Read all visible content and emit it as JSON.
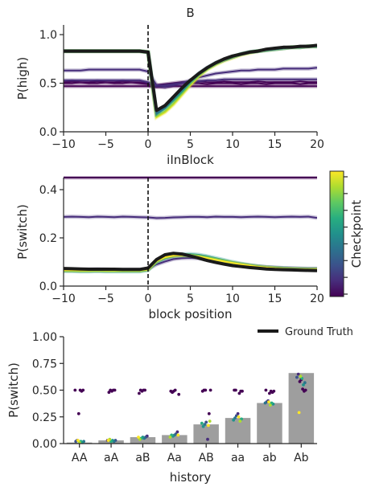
{
  "colors": {
    "viridis": [
      "#440154",
      "#472d7b",
      "#3b528b",
      "#2c728e",
      "#21918c",
      "#28ae80",
      "#5ec962",
      "#addc30",
      "#fde725"
    ],
    "ground_truth": "#1a1a1a",
    "bar_fill": "#9e9e9e",
    "axis": "#262626"
  },
  "chart_data": [
    {
      "type": "line",
      "title": "B",
      "xlabel": "iInBlock",
      "ylabel": "P(high)",
      "xlim": [
        -10,
        20
      ],
      "ylim": [
        0,
        1.1
      ],
      "xticks": [
        -10,
        -5,
        0,
        5,
        10,
        15,
        20
      ],
      "xtick_labels": [
        "−10",
        "−5",
        "0",
        "5",
        "10",
        "15",
        "20"
      ],
      "yticks": [
        0.0,
        0.5,
        1.0
      ],
      "ytick_labels": [
        "0.0",
        "0.5",
        "1.0"
      ],
      "vline_x": 0,
      "grid": false,
      "x": [
        -10,
        -9,
        -8,
        -7,
        -6,
        -5,
        -4,
        -3,
        -2,
        -1,
        0,
        1,
        2,
        3,
        4,
        5,
        6,
        7,
        8,
        9,
        10,
        11,
        12,
        13,
        14,
        15,
        16,
        17,
        18,
        19,
        20
      ],
      "series": [
        {
          "color_index": 0,
          "values": [
            0.47,
            0.47,
            0.47,
            0.47,
            0.47,
            0.47,
            0.47,
            0.47,
            0.47,
            0.47,
            0.47,
            0.46,
            0.46,
            0.47,
            0.47,
            0.47,
            0.47,
            0.47,
            0.47,
            0.47,
            0.47,
            0.47,
            0.47,
            0.47,
            0.47,
            0.47,
            0.47,
            0.47,
            0.47,
            0.47,
            0.47
          ]
        },
        {
          "color_index": 0,
          "values": [
            0.5,
            0.5,
            0.51,
            0.5,
            0.5,
            0.51,
            0.5,
            0.5,
            0.51,
            0.5,
            0.49,
            0.47,
            0.48,
            0.49,
            0.5,
            0.5,
            0.5,
            0.49,
            0.5,
            0.5,
            0.5,
            0.49,
            0.5,
            0.5,
            0.49,
            0.5,
            0.5,
            0.5,
            0.49,
            0.5,
            0.5
          ]
        },
        {
          "color_index": 0,
          "values": [
            0.51,
            0.52,
            0.51,
            0.51,
            0.52,
            0.51,
            0.51,
            0.52,
            0.51,
            0.51,
            0.5,
            0.48,
            0.49,
            0.5,
            0.51,
            0.51,
            0.52,
            0.51,
            0.51,
            0.52,
            0.51,
            0.51,
            0.51,
            0.52,
            0.51,
            0.51,
            0.51,
            0.51,
            0.52,
            0.51,
            0.51
          ]
        },
        {
          "color_index": 1,
          "values": [
            0.53,
            0.53,
            0.53,
            0.53,
            0.53,
            0.53,
            0.53,
            0.53,
            0.53,
            0.53,
            0.51,
            0.47,
            0.48,
            0.49,
            0.5,
            0.51,
            0.52,
            0.53,
            0.53,
            0.54,
            0.54,
            0.54,
            0.54,
            0.54,
            0.54,
            0.54,
            0.54,
            0.54,
            0.54,
            0.54,
            0.54
          ]
        },
        {
          "color_index": 1,
          "values": [
            0.63,
            0.63,
            0.63,
            0.64,
            0.64,
            0.64,
            0.64,
            0.64,
            0.64,
            0.64,
            0.62,
            0.48,
            0.46,
            0.48,
            0.5,
            0.53,
            0.56,
            0.58,
            0.6,
            0.61,
            0.62,
            0.63,
            0.63,
            0.64,
            0.64,
            0.64,
            0.65,
            0.65,
            0.65,
            0.65,
            0.66
          ]
        },
        {
          "color_index": 8,
          "values": [
            0.83,
            0.83,
            0.83,
            0.83,
            0.83,
            0.83,
            0.83,
            0.83,
            0.83,
            0.83,
            0.82,
            0.15,
            0.2,
            0.28,
            0.38,
            0.48,
            0.57,
            0.64,
            0.69,
            0.73,
            0.76,
            0.79,
            0.81,
            0.83,
            0.84,
            0.85,
            0.86,
            0.87,
            0.87,
            0.88,
            0.88
          ]
        },
        {
          "color_index": 7,
          "values": [
            0.83,
            0.83,
            0.83,
            0.83,
            0.83,
            0.83,
            0.83,
            0.83,
            0.83,
            0.83,
            0.82,
            0.16,
            0.21,
            0.29,
            0.39,
            0.49,
            0.58,
            0.65,
            0.7,
            0.74,
            0.77,
            0.8,
            0.82,
            0.83,
            0.84,
            0.85,
            0.86,
            0.87,
            0.87,
            0.88,
            0.88
          ]
        },
        {
          "color_index": 5,
          "values": [
            0.83,
            0.83,
            0.83,
            0.83,
            0.83,
            0.83,
            0.83,
            0.83,
            0.83,
            0.83,
            0.82,
            0.18,
            0.24,
            0.32,
            0.41,
            0.51,
            0.59,
            0.65,
            0.7,
            0.74,
            0.77,
            0.8,
            0.82,
            0.83,
            0.84,
            0.85,
            0.86,
            0.87,
            0.87,
            0.88,
            0.88
          ]
        },
        {
          "color_index": 3,
          "values": [
            0.83,
            0.83,
            0.83,
            0.83,
            0.83,
            0.83,
            0.83,
            0.83,
            0.83,
            0.83,
            0.82,
            0.19,
            0.25,
            0.34,
            0.43,
            0.52,
            0.6,
            0.66,
            0.71,
            0.74,
            0.77,
            0.8,
            0.82,
            0.83,
            0.84,
            0.85,
            0.86,
            0.87,
            0.87,
            0.88,
            0.88
          ]
        }
      ],
      "ground_truth": [
        0.83,
        0.83,
        0.83,
        0.83,
        0.83,
        0.83,
        0.83,
        0.83,
        0.83,
        0.83,
        0.82,
        0.22,
        0.27,
        0.36,
        0.45,
        0.53,
        0.6,
        0.66,
        0.71,
        0.75,
        0.78,
        0.8,
        0.82,
        0.83,
        0.85,
        0.86,
        0.87,
        0.87,
        0.88,
        0.88,
        0.89
      ]
    },
    {
      "type": "line",
      "xlabel": "block position",
      "ylabel": "P(switch)",
      "xlim": [
        -10,
        20
      ],
      "ylim": [
        0,
        0.45
      ],
      "xticks": [
        -10,
        -5,
        0,
        5,
        10,
        15,
        20
      ],
      "xtick_labels": [
        "−10",
        "−5",
        "0",
        "5",
        "10",
        "15",
        "20"
      ],
      "yticks": [
        0.0,
        0.2,
        0.4
      ],
      "ytick_labels": [
        "0.0",
        "0.2",
        "0.4"
      ],
      "vline_x": 0,
      "grid": false,
      "x": [
        -10,
        -9,
        -8,
        -7,
        -6,
        -5,
        -4,
        -3,
        -2,
        -1,
        0,
        1,
        2,
        3,
        4,
        5,
        6,
        7,
        8,
        9,
        10,
        11,
        12,
        13,
        14,
        15,
        16,
        17,
        18,
        19,
        20
      ],
      "series": [
        {
          "color_index": 0,
          "values": [
            0.45,
            0.45,
            0.45,
            0.45,
            0.45,
            0.45,
            0.45,
            0.45,
            0.45,
            0.45,
            0.45,
            0.45,
            0.45,
            0.45,
            0.45,
            0.45,
            0.45,
            0.45,
            0.45,
            0.45,
            0.45,
            0.45,
            0.45,
            0.45,
            0.45,
            0.45,
            0.45,
            0.45,
            0.45,
            0.45,
            0.45
          ]
        },
        {
          "color_index": 1,
          "values": [
            0.287,
            0.288,
            0.287,
            0.286,
            0.288,
            0.287,
            0.286,
            0.288,
            0.287,
            0.286,
            0.285,
            0.282,
            0.283,
            0.285,
            0.286,
            0.287,
            0.287,
            0.286,
            0.288,
            0.287,
            0.287,
            0.286,
            0.287,
            0.288,
            0.287,
            0.286,
            0.287,
            0.288,
            0.287,
            0.288,
            0.283
          ]
        },
        {
          "color_index": 1,
          "values": [
            0.07,
            0.07,
            0.069,
            0.069,
            0.07,
            0.069,
            0.068,
            0.068,
            0.068,
            0.068,
            0.072,
            0.09,
            0.102,
            0.112,
            0.116,
            0.117,
            0.115,
            0.111,
            0.106,
            0.1,
            0.095,
            0.09,
            0.086,
            0.082,
            0.079,
            0.077,
            0.075,
            0.074,
            0.073,
            0.072,
            0.072
          ]
        },
        {
          "color_index": 3,
          "values": [
            0.066,
            0.066,
            0.065,
            0.065,
            0.066,
            0.065,
            0.065,
            0.065,
            0.065,
            0.065,
            0.07,
            0.1,
            0.115,
            0.123,
            0.126,
            0.125,
            0.121,
            0.115,
            0.108,
            0.101,
            0.095,
            0.09,
            0.085,
            0.081,
            0.078,
            0.076,
            0.074,
            0.073,
            0.072,
            0.071,
            0.071
          ]
        },
        {
          "color_index": 4,
          "values": [
            0.062,
            0.062,
            0.061,
            0.061,
            0.062,
            0.061,
            0.061,
            0.061,
            0.061,
            0.061,
            0.066,
            0.1,
            0.118,
            0.127,
            0.132,
            0.133,
            0.13,
            0.124,
            0.116,
            0.108,
            0.1,
            0.093,
            0.087,
            0.082,
            0.078,
            0.075,
            0.073,
            0.071,
            0.07,
            0.069,
            0.069
          ]
        },
        {
          "color_index": 6,
          "values": [
            0.064,
            0.064,
            0.063,
            0.063,
            0.064,
            0.063,
            0.063,
            0.063,
            0.063,
            0.063,
            0.068,
            0.102,
            0.118,
            0.126,
            0.129,
            0.128,
            0.124,
            0.118,
            0.111,
            0.104,
            0.097,
            0.091,
            0.086,
            0.081,
            0.077,
            0.075,
            0.073,
            0.071,
            0.07,
            0.069,
            0.069
          ]
        },
        {
          "color_index": 8,
          "values": [
            0.066,
            0.066,
            0.065,
            0.065,
            0.066,
            0.065,
            0.065,
            0.065,
            0.065,
            0.065,
            0.069,
            0.104,
            0.12,
            0.126,
            0.128,
            0.126,
            0.122,
            0.116,
            0.109,
            0.102,
            0.096,
            0.09,
            0.085,
            0.08,
            0.077,
            0.074,
            0.072,
            0.071,
            0.07,
            0.069,
            0.069
          ]
        }
      ],
      "ground_truth": [
        0.073,
        0.072,
        0.071,
        0.07,
        0.07,
        0.07,
        0.07,
        0.069,
        0.069,
        0.069,
        0.075,
        0.11,
        0.13,
        0.136,
        0.133,
        0.125,
        0.116,
        0.106,
        0.098,
        0.091,
        0.085,
        0.081,
        0.077,
        0.074,
        0.071,
        0.069,
        0.068,
        0.067,
        0.066,
        0.065,
        0.064
      ]
    },
    {
      "type": "bar",
      "xlabel": "history",
      "ylabel": "P(switch)",
      "ylim": [
        0,
        1.0
      ],
      "yticks": [
        0.0,
        0.25,
        0.5,
        0.75,
        1.0
      ],
      "ytick_labels": [
        "0.00",
        "0.25",
        "0.50",
        "0.75",
        "1.00"
      ],
      "categories": [
        "AA",
        "aA",
        "aB",
        "Aa",
        "AB",
        "aa",
        "ab",
        "Ab"
      ],
      "values": [
        0.01,
        0.03,
        0.06,
        0.08,
        0.18,
        0.24,
        0.38,
        0.66
      ],
      "legend": {
        "label": "Ground Truth",
        "position": "top-right"
      },
      "grid": false,
      "points": [
        [
          0.5,
          0.5,
          0.49,
          0.5,
          0.28,
          0.03,
          0.02,
          0.02,
          0.01,
          0.02,
          0.01,
          0.03
        ],
        [
          0.5,
          0.5,
          0.49,
          0.5,
          0.48,
          0.03,
          0.03,
          0.02,
          0.03,
          0.02,
          0.04,
          0.03
        ],
        [
          0.5,
          0.5,
          0.49,
          0.5,
          0.47,
          0.07,
          0.06,
          0.05,
          0.06,
          0.05,
          0.04,
          0.06
        ],
        [
          0.5,
          0.49,
          0.48,
          0.49,
          0.46,
          0.11,
          0.09,
          0.08,
          0.07,
          0.08,
          0.06,
          0.08
        ],
        [
          0.5,
          0.5,
          0.49,
          0.5,
          0.28,
          0.04,
          0.2,
          0.18,
          0.16,
          0.19,
          0.21,
          0.17
        ],
        [
          0.5,
          0.5,
          0.49,
          0.49,
          0.47,
          0.28,
          0.26,
          0.24,
          0.22,
          0.23,
          0.21,
          0.25
        ],
        [
          0.5,
          0.49,
          0.48,
          0.49,
          0.47,
          0.4,
          0.39,
          0.38,
          0.37,
          0.38,
          0.36,
          0.39
        ],
        [
          0.5,
          0.49,
          0.51,
          0.6,
          0.58,
          0.65,
          0.62,
          0.57,
          0.55,
          0.61,
          0.63,
          0.29
        ]
      ],
      "point_color_indices": [
        0,
        0,
        0,
        0,
        0,
        1,
        2,
        3,
        4,
        5,
        7,
        8
      ]
    }
  ],
  "colorbar": {
    "label": "Checkpoint",
    "ticks": 8
  }
}
